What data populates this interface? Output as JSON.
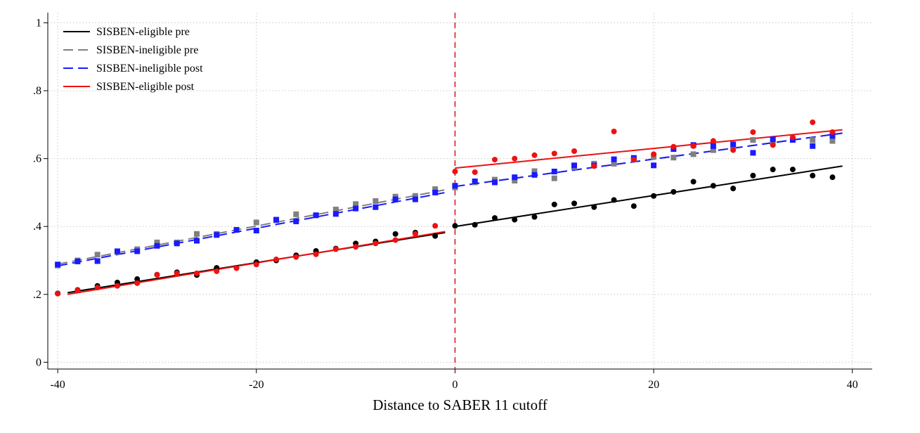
{
  "chart_data": {
    "type": "scatter",
    "xlabel": "Distance to SABER 11 cutoff",
    "ylabel": "",
    "xlim": [
      -41,
      42
    ],
    "ylim": [
      -0.02,
      1.03
    ],
    "x_ticks": [
      -40,
      -20,
      0,
      20,
      40
    ],
    "x_tick_labels": [
      "-40",
      "-20",
      "0",
      "20",
      "40"
    ],
    "y_ticks": [
      0,
      0.2,
      0.4,
      0.6,
      0.8,
      1
    ],
    "y_tick_labels": [
      "0",
      ".2",
      ".4",
      ".6",
      ".8",
      "1"
    ],
    "grid": true,
    "cutoff_line": {
      "x": 0,
      "color": "#e41a1c",
      "style": "dashed"
    },
    "legend": {
      "position": "top-left",
      "entries": [
        {
          "label": "SISBEN-eligible pre",
          "color": "#000000",
          "dash": "solid"
        },
        {
          "label": "SISBEN-ineligible pre",
          "color": "#808080",
          "dash": "dashed"
        },
        {
          "label": "SISBEN-ineligible post",
          "color": "#1a1aff",
          "dash": "dashed"
        },
        {
          "label": "SISBEN-eligible post",
          "color": "#ee1111",
          "dash": "solid"
        }
      ]
    },
    "series": [
      {
        "name": "SISBEN-eligible pre",
        "color": "#000000",
        "marker": "circle",
        "dash": "solid",
        "points": [
          [
            -40,
            0.203
          ],
          [
            -38,
            0.213
          ],
          [
            -36,
            0.225
          ],
          [
            -34,
            0.235
          ],
          [
            -32,
            0.245
          ],
          [
            -30,
            0.258
          ],
          [
            -28,
            0.265
          ],
          [
            -26,
            0.257
          ],
          [
            -24,
            0.278
          ],
          [
            -22,
            0.278
          ],
          [
            -20,
            0.295
          ],
          [
            -18,
            0.3
          ],
          [
            -16,
            0.315
          ],
          [
            -14,
            0.328
          ],
          [
            -12,
            0.335
          ],
          [
            -10,
            0.35
          ],
          [
            -8,
            0.356
          ],
          [
            -6,
            0.378
          ],
          [
            -4,
            0.382
          ],
          [
            -2,
            0.372
          ],
          [
            0,
            0.402
          ],
          [
            2,
            0.405
          ],
          [
            4,
            0.425
          ],
          [
            6,
            0.42
          ],
          [
            8,
            0.428
          ],
          [
            10,
            0.465
          ],
          [
            12,
            0.468
          ],
          [
            14,
            0.457
          ],
          [
            16,
            0.478
          ],
          [
            18,
            0.46
          ],
          [
            20,
            0.49
          ],
          [
            22,
            0.502
          ],
          [
            24,
            0.532
          ],
          [
            26,
            0.52
          ],
          [
            28,
            0.512
          ],
          [
            30,
            0.55
          ],
          [
            32,
            0.568
          ],
          [
            34,
            0.568
          ],
          [
            36,
            0.55
          ],
          [
            38,
            0.545
          ]
        ],
        "fits": [
          {
            "x": [
              -39,
              -1
            ],
            "y": [
              0.205,
              0.382
            ]
          },
          {
            "x": [
              0,
              39
            ],
            "y": [
              0.4,
              0.578
            ]
          }
        ]
      },
      {
        "name": "SISBEN-ineligible pre",
        "color": "#808080",
        "marker": "square",
        "dash": "dashed",
        "points": [
          [
            -40,
            0.285
          ],
          [
            -38,
            0.3
          ],
          [
            -36,
            0.317
          ],
          [
            -34,
            0.325
          ],
          [
            -32,
            0.333
          ],
          [
            -30,
            0.353
          ],
          [
            -28,
            0.353
          ],
          [
            -26,
            0.378
          ],
          [
            -24,
            0.378
          ],
          [
            -22,
            0.39
          ],
          [
            -20,
            0.412
          ],
          [
            -18,
            0.418
          ],
          [
            -16,
            0.436
          ],
          [
            -14,
            0.433
          ],
          [
            -12,
            0.45
          ],
          [
            -10,
            0.466
          ],
          [
            -8,
            0.475
          ],
          [
            -6,
            0.488
          ],
          [
            -4,
            0.49
          ],
          [
            -2,
            0.51
          ],
          [
            0,
            0.515
          ],
          [
            2,
            0.53
          ],
          [
            4,
            0.538
          ],
          [
            6,
            0.535
          ],
          [
            8,
            0.563
          ],
          [
            10,
            0.542
          ],
          [
            12,
            0.575
          ],
          [
            14,
            0.585
          ],
          [
            16,
            0.585
          ],
          [
            18,
            0.598
          ],
          [
            20,
            0.605
          ],
          [
            22,
            0.603
          ],
          [
            24,
            0.613
          ],
          [
            26,
            0.625
          ],
          [
            28,
            0.633
          ],
          [
            30,
            0.655
          ],
          [
            32,
            0.648
          ],
          [
            34,
            0.655
          ],
          [
            36,
            0.655
          ],
          [
            38,
            0.652
          ]
        ],
        "fits": [
          {
            "x": [
              -40,
              -1
            ],
            "y": [
              0.289,
              0.508
            ]
          },
          {
            "x": [
              0,
              39
            ],
            "y": [
              0.518,
              0.675
            ]
          }
        ]
      },
      {
        "name": "SISBEN-ineligible post",
        "color": "#1a1aff",
        "marker": "square",
        "dash": "dashed",
        "points": [
          [
            -40,
            0.288
          ],
          [
            -38,
            0.297
          ],
          [
            -36,
            0.298
          ],
          [
            -34,
            0.327
          ],
          [
            -32,
            0.327
          ],
          [
            -30,
            0.343
          ],
          [
            -28,
            0.35
          ],
          [
            -26,
            0.358
          ],
          [
            -24,
            0.375
          ],
          [
            -22,
            0.39
          ],
          [
            -20,
            0.388
          ],
          [
            -18,
            0.42
          ],
          [
            -16,
            0.415
          ],
          [
            -14,
            0.433
          ],
          [
            -12,
            0.437
          ],
          [
            -10,
            0.453
          ],
          [
            -8,
            0.457
          ],
          [
            -6,
            0.48
          ],
          [
            -4,
            0.48
          ],
          [
            -2,
            0.5
          ],
          [
            0,
            0.52
          ],
          [
            2,
            0.533
          ],
          [
            4,
            0.53
          ],
          [
            6,
            0.545
          ],
          [
            8,
            0.552
          ],
          [
            10,
            0.562
          ],
          [
            12,
            0.58
          ],
          [
            14,
            0.58
          ],
          [
            16,
            0.598
          ],
          [
            18,
            0.602
          ],
          [
            20,
            0.58
          ],
          [
            22,
            0.628
          ],
          [
            24,
            0.64
          ],
          [
            26,
            0.637
          ],
          [
            28,
            0.642
          ],
          [
            30,
            0.617
          ],
          [
            32,
            0.657
          ],
          [
            34,
            0.655
          ],
          [
            36,
            0.637
          ],
          [
            38,
            0.667
          ]
        ],
        "fits": [
          {
            "x": [
              -40,
              -1
            ],
            "y": [
              0.284,
              0.5
            ]
          },
          {
            "x": [
              0,
              39
            ],
            "y": [
              0.518,
              0.675
            ]
          }
        ]
      },
      {
        "name": "SISBEN-eligible post",
        "color": "#ee1111",
        "marker": "circle",
        "dash": "solid",
        "points": [
          [
            -40,
            0.202
          ],
          [
            -38,
            0.212
          ],
          [
            -36,
            0.22
          ],
          [
            -34,
            0.225
          ],
          [
            -32,
            0.233
          ],
          [
            -30,
            0.258
          ],
          [
            -28,
            0.262
          ],
          [
            -26,
            0.262
          ],
          [
            -24,
            0.268
          ],
          [
            -22,
            0.277
          ],
          [
            -20,
            0.288
          ],
          [
            -18,
            0.303
          ],
          [
            -16,
            0.31
          ],
          [
            -14,
            0.318
          ],
          [
            -12,
            0.333
          ],
          [
            -10,
            0.34
          ],
          [
            -8,
            0.35
          ],
          [
            -6,
            0.36
          ],
          [
            -4,
            0.378
          ],
          [
            -2,
            0.402
          ],
          [
            0,
            0.562
          ],
          [
            2,
            0.56
          ],
          [
            4,
            0.597
          ],
          [
            6,
            0.6
          ],
          [
            8,
            0.61
          ],
          [
            10,
            0.615
          ],
          [
            12,
            0.622
          ],
          [
            14,
            0.578
          ],
          [
            16,
            0.68
          ],
          [
            18,
            0.597
          ],
          [
            20,
            0.613
          ],
          [
            22,
            0.635
          ],
          [
            24,
            0.637
          ],
          [
            26,
            0.652
          ],
          [
            28,
            0.625
          ],
          [
            30,
            0.678
          ],
          [
            32,
            0.64
          ],
          [
            34,
            0.663
          ],
          [
            36,
            0.707
          ],
          [
            38,
            0.678
          ]
        ],
        "fits": [
          {
            "x": [
              -39,
              -1
            ],
            "y": [
              0.2,
              0.385
            ]
          },
          {
            "x": [
              0,
              39
            ],
            "y": [
              0.572,
              0.685
            ]
          }
        ]
      }
    ]
  }
}
